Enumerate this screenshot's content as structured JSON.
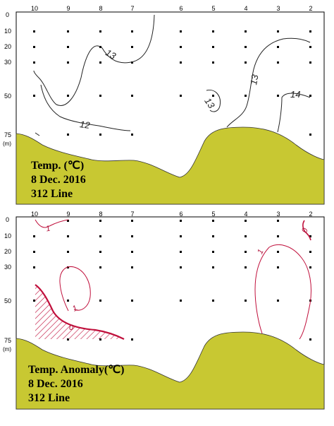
{
  "stations": [
    "10",
    "9",
    "8",
    "7",
    "6",
    "5",
    "4",
    "3",
    "2"
  ],
  "depths": [
    "0",
    "10",
    "20",
    "30",
    "50",
    "75"
  ],
  "depth_unit": "(m)",
  "top_panel": {
    "title_line1": "Temp. (℃)",
    "title_line2": "8  Dec. 2016",
    "title_line3": "312 Line",
    "contour_labels": {
      "a": "13",
      "b": "12",
      "c": "13",
      "d": "13",
      "e": "14"
    }
  },
  "bottom_panel": {
    "title_line1": "Temp. Anomaly(℃)",
    "title_line2": "8  Dec. 2016",
    "title_line3": "312 Line",
    "contour_labels": {
      "a": "1",
      "b": "1",
      "c": "0",
      "d": "1",
      "e": "0"
    }
  },
  "colors": {
    "seabed": "#c8c832",
    "anomaly_line": "#c0103c",
    "frame": "#000000"
  }
}
